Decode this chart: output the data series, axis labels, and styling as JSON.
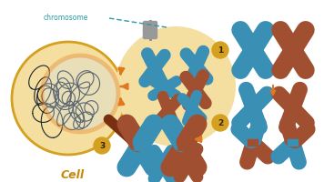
{
  "cell_circle_color": "#F5DFA0",
  "cell_circle_edge": "#D4A020",
  "magnifier_glass_color": "#D0DDE5",
  "magnifier_rim_color": "#E87A10",
  "magnifier_handle_color": "#7A3010",
  "chromosome_circle_color": "#F5DFA0",
  "label_color_teal": "#2A9AA8",
  "label_color_gold": "#C8880A",
  "chr_teal": "#3A8FB5",
  "chr_brown": "#A05030",
  "chr_brown2": "#7A3820",
  "arrow_color": "#E07820",
  "num_circle_color": "#D4A020",
  "dna_color": "#1A2530"
}
